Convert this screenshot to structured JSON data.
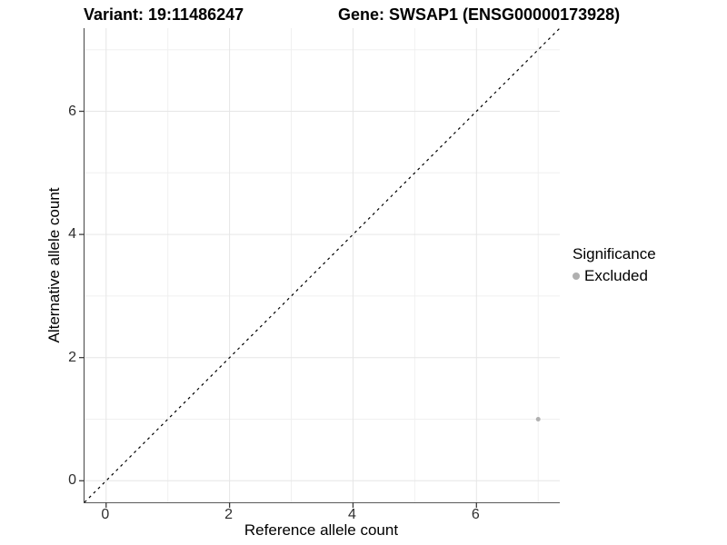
{
  "header": {
    "title_left": "Variant: 19:11486247",
    "title_right": "Gene: SWSAP1 (ENSG00000173928)"
  },
  "legend": {
    "title": "Significance",
    "entries": [
      {
        "label": "Excluded",
        "color": "#b0b0b0"
      }
    ]
  },
  "colors": {
    "grid_major": "#e6e6e6",
    "grid_minor": "#f0f0f0",
    "tick_mark": "#3d3d3d",
    "identity_line": "#000000",
    "point": "#b0b0b0"
  },
  "chart_data": {
    "type": "scatter",
    "title": "Variant: 19:11486247  Gene: SWSAP1 (ENSG00000173928)",
    "xlabel": "Reference allele count",
    "ylabel": "Alternative allele count",
    "xlim": [
      -0.35,
      7.35
    ],
    "ylim": [
      -0.35,
      7.35
    ],
    "x_ticks": [
      0,
      2,
      4,
      6
    ],
    "y_ticks": [
      0,
      2,
      4,
      6
    ],
    "x_tick_labels": [
      "0",
      "2",
      "4",
      "6"
    ],
    "y_tick_labels": [
      "0",
      "2",
      "4",
      "6"
    ],
    "x_minor_ticks": [
      1,
      3,
      5,
      7
    ],
    "y_minor_ticks": [
      1,
      3,
      5,
      7
    ],
    "grid": true,
    "legend_position": "right",
    "identity_line": {
      "type": "abline",
      "slope": 1,
      "intercept": 0,
      "style": "dashed"
    },
    "series": [
      {
        "name": "Excluded",
        "color": "#b0b0b0",
        "points": [
          {
            "x": 7,
            "y": 1
          }
        ]
      }
    ]
  }
}
